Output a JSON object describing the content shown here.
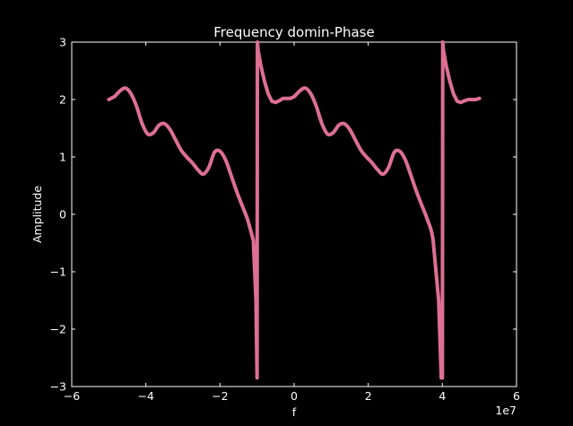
{
  "chart_data": {
    "type": "line",
    "title": "Frequency domin-Phase",
    "xlabel": "f",
    "ylabel": "Amplitude",
    "x_multiplier_label": "1e7",
    "xlim": [
      -6,
      6
    ],
    "ylim": [
      -3,
      3
    ],
    "xticks": [
      -6,
      -4,
      -2,
      0,
      2,
      4,
      6
    ],
    "xtick_labels": [
      "−6",
      "−4",
      "−2",
      "0",
      "2",
      "4",
      "6"
    ],
    "yticks": [
      -3,
      -2,
      -1,
      0,
      1,
      2,
      3
    ],
    "ytick_labels": [
      "−3",
      "−2",
      "−1",
      "0",
      "1",
      "2",
      "3"
    ],
    "grid": false,
    "background_color": "#000000",
    "axis_color": "#ffffff",
    "series": [
      {
        "color": "#dd6f93",
        "x": [
          -5.0,
          -4.85,
          -4.7,
          -4.55,
          -4.4,
          -4.25,
          -4.1,
          -3.95,
          -3.8,
          -3.65,
          -3.5,
          -3.35,
          -3.2,
          -3.05,
          -2.9,
          -2.75,
          -2.6,
          -2.45,
          -2.3,
          -2.15,
          -2.0,
          -1.85,
          -1.7,
          -1.55,
          -1.4,
          -1.25,
          -1.1,
          -1.03,
          -1.0,
          -0.99,
          -0.97,
          -0.9,
          -0.8,
          -0.7,
          -0.6,
          -0.5,
          -0.4,
          -0.3,
          -0.2,
          -0.1,
          0.0,
          0.15,
          0.3,
          0.45,
          0.6,
          0.75,
          0.9,
          1.05,
          1.2,
          1.35,
          1.5,
          1.65,
          1.8,
          1.95,
          2.1,
          2.25,
          2.4,
          2.55,
          2.7,
          2.85,
          3.0,
          3.15,
          3.3,
          3.45,
          3.6,
          3.75,
          3.9,
          3.97,
          4.0,
          4.01,
          4.03,
          4.1,
          4.2,
          4.3,
          4.4,
          4.5,
          4.6,
          4.7,
          4.8,
          4.9,
          5.0
        ],
        "y": [
          2.0,
          2.05,
          2.15,
          2.2,
          2.1,
          1.88,
          1.58,
          1.4,
          1.42,
          1.55,
          1.58,
          1.48,
          1.3,
          1.12,
          1.0,
          0.9,
          0.78,
          0.7,
          0.82,
          1.08,
          1.1,
          0.95,
          0.68,
          0.4,
          0.15,
          -0.1,
          -0.45,
          -1.5,
          -2.85,
          3.0,
          2.85,
          2.6,
          2.32,
          2.1,
          1.97,
          1.95,
          1.98,
          2.02,
          2.02,
          2.02,
          2.05,
          2.15,
          2.2,
          2.1,
          1.88,
          1.58,
          1.4,
          1.42,
          1.55,
          1.58,
          1.48,
          1.3,
          1.12,
          1.0,
          0.9,
          0.78,
          0.7,
          0.82,
          1.08,
          1.1,
          0.95,
          0.68,
          0.4,
          0.15,
          -0.1,
          -0.45,
          -1.5,
          -2.85,
          -2.85,
          3.0,
          2.85,
          2.6,
          2.32,
          2.1,
          1.97,
          1.95,
          1.98,
          2.0,
          2.0,
          2.0,
          2.02
        ]
      }
    ]
  }
}
